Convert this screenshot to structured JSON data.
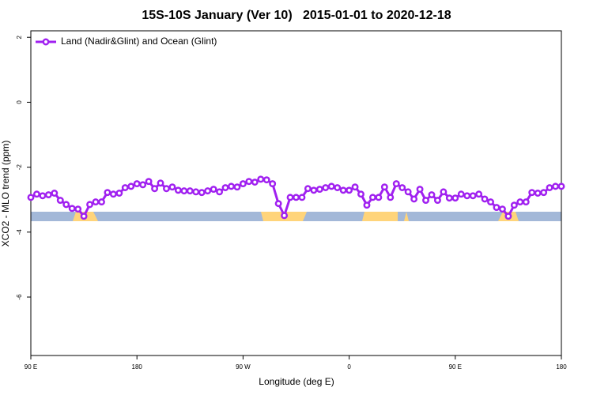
{
  "chart_data": {
    "type": "line",
    "title": "15S-10S January (Ver 10)   2015-01-01 to 2020-12-18",
    "x_label": "Longitude (deg E)",
    "y_label": "XCO2 - MLO trend (ppm)",
    "xlim": [
      90,
      540
    ],
    "ylim": [
      -7.8,
      2.2
    ],
    "xticks": [
      {
        "value": 90,
        "label": "90 E"
      },
      180,
      {
        "value": 270,
        "label": "90 W"
      },
      {
        "value": 360,
        "label": "0"
      },
      {
        "value": 450,
        "label": "90 E"
      },
      {
        "value": 540,
        "label": "180"
      }
    ],
    "yticks": [
      2,
      0,
      -2,
      -4,
      -6
    ],
    "legend": "top-left",
    "x": [
      90,
      95,
      100,
      105,
      110,
      115,
      120,
      125,
      130,
      135,
      140,
      145,
      150,
      155,
      160,
      165,
      170,
      175,
      180,
      185,
      190,
      195,
      200,
      205,
      210,
      215,
      220,
      225,
      230,
      235,
      240,
      245,
      250,
      255,
      260,
      265,
      270,
      275,
      280,
      285,
      290,
      295,
      300,
      305,
      310,
      315,
      320,
      325,
      330,
      335,
      340,
      345,
      350,
      355,
      360,
      365,
      370,
      375,
      380,
      385,
      390,
      395,
      400,
      405,
      410,
      415,
      420,
      425,
      430,
      435,
      440,
      445,
      450,
      455,
      460,
      465,
      470,
      475,
      480,
      485,
      490,
      495,
      500,
      505,
      510,
      515,
      520,
      525,
      530,
      535,
      540
    ],
    "series": [
      {
        "name": "Land (Nadir&Glint) and Ocean (Glint)",
        "color": "#a020f0",
        "values": [
          -2.93,
          -2.83,
          -2.88,
          -2.85,
          -2.8,
          -3.02,
          -3.15,
          -3.27,
          -3.29,
          -3.51,
          -3.15,
          -3.07,
          -3.07,
          -2.78,
          -2.83,
          -2.8,
          -2.63,
          -2.59,
          -2.51,
          -2.54,
          -2.44,
          -2.66,
          -2.49,
          -2.66,
          -2.61,
          -2.71,
          -2.73,
          -2.73,
          -2.76,
          -2.78,
          -2.73,
          -2.68,
          -2.76,
          -2.63,
          -2.59,
          -2.61,
          -2.51,
          -2.44,
          -2.46,
          -2.37,
          -2.39,
          -2.51,
          -3.12,
          -3.49,
          -2.93,
          -2.93,
          -2.93,
          -2.66,
          -2.71,
          -2.68,
          -2.63,
          -2.59,
          -2.63,
          -2.71,
          -2.71,
          -2.61,
          -2.83,
          -3.17,
          -2.93,
          -2.93,
          -2.61,
          -2.93,
          -2.51,
          -2.63,
          -2.76,
          -2.98,
          -2.68,
          -3.02,
          -2.85,
          -3.02,
          -2.76,
          -2.95,
          -2.95,
          -2.83,
          -2.88,
          -2.88,
          -2.83,
          -2.98,
          -3.07,
          -3.24,
          -3.29,
          -3.51,
          -3.17,
          -3.07,
          -3.07,
          -2.78,
          -2.8,
          -2.78,
          -2.63,
          -2.59,
          -2.59
        ]
      }
    ]
  }
}
